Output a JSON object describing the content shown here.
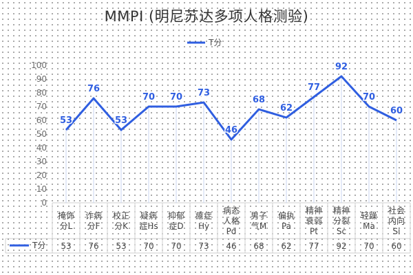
{
  "title": "MMPI (明尼苏达多项人格测验)",
  "colors": {
    "series": "#2f5ee0",
    "axis_text": "#6b6b6b",
    "grid": "#cfcfcf",
    "title": "#333333"
  },
  "chart_data": {
    "type": "line",
    "title": "MMPI (明尼苏达多项人格测验)",
    "legend_position": "top",
    "categories": [
      [
        "掩饰",
        "分L"
      ],
      [
        "诈病",
        "分F"
      ],
      [
        "校正",
        "分K"
      ],
      [
        "疑病",
        "症Hs"
      ],
      [
        "抑郁",
        "症D"
      ],
      [
        "癔症",
        "Hy"
      ],
      [
        "病态",
        "人格",
        "Pd"
      ],
      [
        "男子",
        "气M"
      ],
      [
        "偏执",
        "Pa"
      ],
      [
        "精神",
        "衰弱",
        "Pt"
      ],
      [
        "精神",
        "分裂",
        "Sc"
      ],
      [
        "轻躁",
        "Ma"
      ],
      [
        "社会",
        "内向",
        "Si"
      ]
    ],
    "series": [
      {
        "name": "T分",
        "values": [
          53,
          76,
          53,
          70,
          70,
          73,
          46,
          68,
          62,
          77,
          92,
          70,
          60
        ]
      }
    ],
    "ylim": [
      0,
      100
    ],
    "yticks": [
      0,
      10,
      20,
      30,
      40,
      50,
      60,
      70,
      80,
      90,
      100
    ],
    "data_table": true,
    "grid": "vertical drop lines from each point"
  }
}
